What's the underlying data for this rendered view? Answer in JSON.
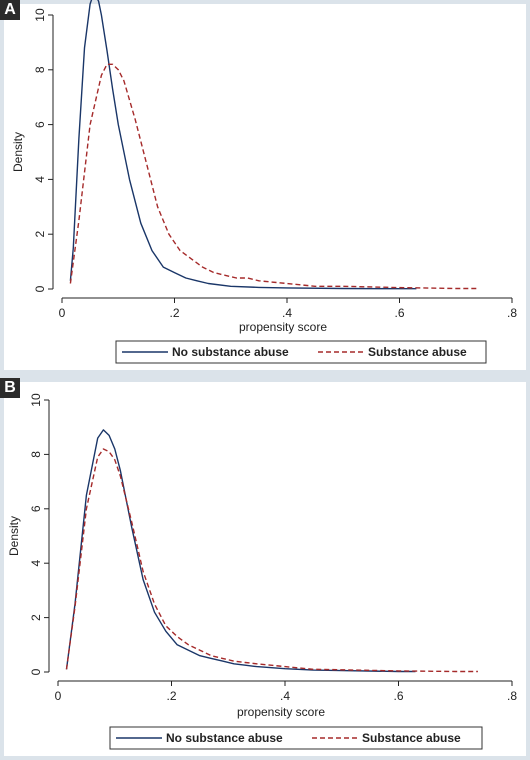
{
  "figure": {
    "panels": [
      {
        "letter": "A",
        "xlabel": "propensity score",
        "ylabel": "Density"
      },
      {
        "letter": "B",
        "xlabel": "propensity score",
        "ylabel": "Density"
      }
    ],
    "legend": [
      "No substance abuse",
      "Substance abuse"
    ],
    "colors": {
      "no_abuse": "#1a3668",
      "abuse": "#a52a2a"
    }
  },
  "chart_data": [
    {
      "type": "line",
      "panel": "A",
      "xlabel": "propensity score",
      "ylabel": "Density",
      "xlim": [
        0,
        0.8
      ],
      "ylim": [
        0,
        10
      ],
      "x_ticks": [
        0,
        0.2,
        0.4,
        0.6,
        0.8
      ],
      "x_tick_labels": [
        "0",
        ".2",
        ".4",
        ".6",
        ".8"
      ],
      "y_ticks": [
        0,
        2,
        4,
        6,
        8,
        10
      ],
      "y_tick_labels": [
        "0",
        "2",
        "4",
        "6",
        "8",
        "10"
      ],
      "grid": false,
      "legend_position": "bottom",
      "series": [
        {
          "name": "No substance abuse",
          "style": "solid",
          "x": [
            0.015,
            0.02,
            0.03,
            0.04,
            0.05,
            0.055,
            0.06,
            0.065,
            0.07,
            0.08,
            0.09,
            0.1,
            0.12,
            0.14,
            0.16,
            0.18,
            0.2,
            0.22,
            0.24,
            0.26,
            0.3,
            0.35,
            0.4,
            0.5,
            0.6,
            0.63
          ],
          "y": [
            0.3,
            1.5,
            5.5,
            8.8,
            10.4,
            10.7,
            10.7,
            10.5,
            10.0,
            8.7,
            7.3,
            6.0,
            4.0,
            2.4,
            1.4,
            0.8,
            0.6,
            0.4,
            0.3,
            0.2,
            0.1,
            0.06,
            0.04,
            0.02,
            0.01,
            0.01
          ]
        },
        {
          "name": "Substance abuse",
          "style": "dashed",
          "x": [
            0.015,
            0.03,
            0.05,
            0.07,
            0.08,
            0.09,
            0.1,
            0.11,
            0.13,
            0.15,
            0.17,
            0.19,
            0.21,
            0.23,
            0.25,
            0.27,
            0.29,
            0.31,
            0.33,
            0.35,
            0.4,
            0.45,
            0.5,
            0.6,
            0.7,
            0.74
          ],
          "y": [
            0.2,
            2.5,
            6.0,
            7.8,
            8.2,
            8.2,
            8.0,
            7.6,
            6.2,
            4.6,
            3.0,
            2.0,
            1.4,
            1.1,
            0.8,
            0.6,
            0.5,
            0.4,
            0.4,
            0.3,
            0.2,
            0.1,
            0.1,
            0.05,
            0.02,
            0.02
          ]
        }
      ]
    },
    {
      "type": "line",
      "panel": "B",
      "xlabel": "propensity score",
      "ylabel": "Density",
      "xlim": [
        0,
        0.8
      ],
      "ylim": [
        0,
        10
      ],
      "x_ticks": [
        0,
        0.2,
        0.4,
        0.6,
        0.8
      ],
      "x_tick_labels": [
        "0",
        ".2",
        ".4",
        ".6",
        ".8"
      ],
      "y_ticks": [
        0,
        2,
        4,
        6,
        8,
        10
      ],
      "y_tick_labels": [
        "0",
        "2",
        "4",
        "6",
        "8",
        "10"
      ],
      "grid": false,
      "legend_position": "bottom",
      "series": [
        {
          "name": "No substance abuse",
          "style": "solid",
          "x": [
            0.015,
            0.03,
            0.05,
            0.07,
            0.08,
            0.09,
            0.1,
            0.11,
            0.13,
            0.15,
            0.17,
            0.19,
            0.21,
            0.23,
            0.25,
            0.27,
            0.29,
            0.31,
            0.33,
            0.35,
            0.4,
            0.45,
            0.5,
            0.6,
            0.63
          ],
          "y": [
            0.1,
            2.5,
            6.5,
            8.6,
            8.9,
            8.7,
            8.2,
            7.4,
            5.3,
            3.4,
            2.2,
            1.5,
            1.0,
            0.8,
            0.6,
            0.5,
            0.4,
            0.3,
            0.25,
            0.2,
            0.12,
            0.07,
            0.05,
            0.02,
            0.02
          ]
        },
        {
          "name": "Substance abuse",
          "style": "dashed",
          "x": [
            0.015,
            0.03,
            0.05,
            0.07,
            0.08,
            0.09,
            0.1,
            0.11,
            0.13,
            0.15,
            0.17,
            0.19,
            0.21,
            0.23,
            0.25,
            0.27,
            0.29,
            0.31,
            0.33,
            0.35,
            0.4,
            0.45,
            0.5,
            0.6,
            0.7,
            0.74
          ],
          "y": [
            0.1,
            2.4,
            6.0,
            7.9,
            8.2,
            8.1,
            7.8,
            7.2,
            5.5,
            3.7,
            2.5,
            1.7,
            1.3,
            1.0,
            0.8,
            0.6,
            0.5,
            0.4,
            0.35,
            0.3,
            0.2,
            0.1,
            0.08,
            0.04,
            0.02,
            0.02
          ]
        }
      ]
    }
  ]
}
